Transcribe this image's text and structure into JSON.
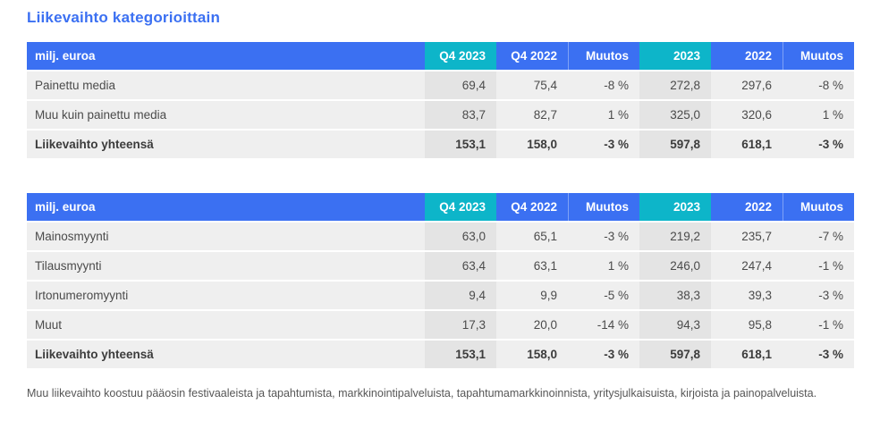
{
  "page": {
    "title": "Liikevaihto kategorioittain",
    "footnote": "Muu liikevaihto koostuu pääosin festivaaleista ja tapahtumista, markkinointipalveluista, tapahtumamarkkinoinnista, yritysjulkaisuista, kirjoista ja painopalveluista."
  },
  "colors": {
    "header_blue": "#3b70f2",
    "highlight_teal": "#0db5c9",
    "row_gray": "#efefef",
    "highlight_column_gray": "#e4e4e4",
    "title_blue": "#3b70f2",
    "body_text": "#4b4b4b"
  },
  "tables": [
    {
      "name": "liikevaihto-kategorioittain",
      "columns": [
        "milj. euroa",
        "Q4 2023",
        "Q4 2022",
        "Muutos",
        "2023",
        "2022",
        "Muutos"
      ],
      "rows": [
        {
          "label": "Painettu media",
          "values": [
            "69,4",
            "75,4",
            "-8 %",
            "272,8",
            "297,6",
            "-8 %"
          ]
        },
        {
          "label": "Muu kuin painettu media",
          "values": [
            "83,7",
            "82,7",
            "1 %",
            "325,0",
            "320,6",
            "1 %"
          ]
        },
        {
          "label": "Liikevaihto yhteensä",
          "values": [
            "153,1",
            "158,0",
            "-3 %",
            "597,8",
            "618,1",
            "-3 %"
          ]
        }
      ]
    },
    {
      "name": "liikevaihto-myyntilajeittain",
      "columns": [
        "milj. euroa",
        "Q4 2023",
        "Q4 2022",
        "Muutos",
        "2023",
        "2022",
        "Muutos"
      ],
      "rows": [
        {
          "label": "Mainosmyynti",
          "values": [
            "63,0",
            "65,1",
            "-3 %",
            "219,2",
            "235,7",
            "-7 %"
          ]
        },
        {
          "label": "Tilausmyynti",
          "values": [
            "63,4",
            "63,1",
            "1 %",
            "246,0",
            "247,4",
            "-1 %"
          ]
        },
        {
          "label": "Irtonumeromyynti",
          "values": [
            "9,4",
            "9,9",
            "-5 %",
            "38,3",
            "39,3",
            "-3 %"
          ]
        },
        {
          "label": "Muut",
          "values": [
            "17,3",
            "20,0",
            "-14 %",
            "94,3",
            "95,8",
            "-1 %"
          ]
        },
        {
          "label": "Liikevaihto yhteensä",
          "values": [
            "153,1",
            "158,0",
            "-3 %",
            "597,8",
            "618,1",
            "-3 %"
          ]
        }
      ]
    }
  ]
}
